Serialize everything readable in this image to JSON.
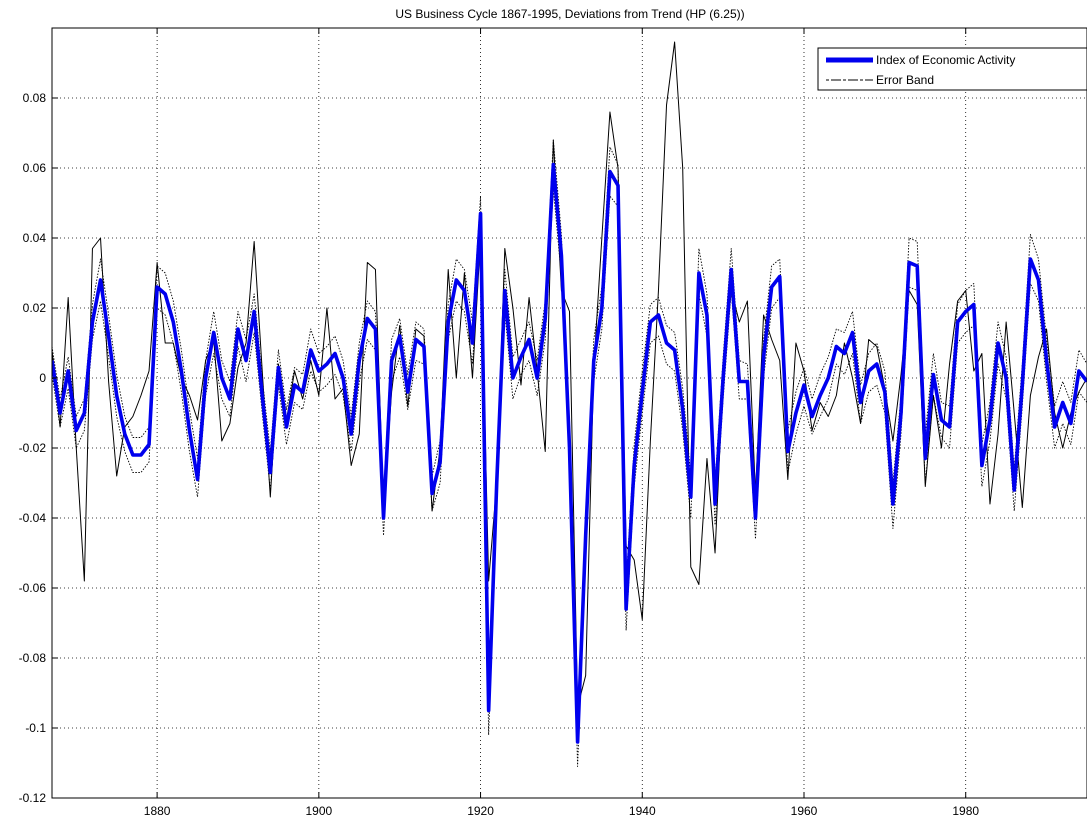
{
  "chart_data": {
    "type": "line",
    "title": "US Business Cycle 1867-1995, Deviations from Trend (HP (6.25))",
    "xlabel": "",
    "ylabel": "",
    "xlim": [
      1867,
      1995
    ],
    "ylim": [
      -0.12,
      0.1
    ],
    "x_ticks": [
      1880,
      1900,
      1920,
      1940,
      1960,
      1980
    ],
    "x_tick_labels": [
      "1880",
      "1900",
      "1920",
      "1940",
      "1960",
      "1980"
    ],
    "y_ticks": [
      -0.12,
      -0.1,
      -0.08,
      -0.06,
      -0.04,
      -0.02,
      0,
      0.02,
      0.04,
      0.06,
      0.08
    ],
    "y_tick_labels": [
      "-0.12",
      "-0.1",
      "-0.08",
      "-0.06",
      "-0.04",
      "-0.02",
      "0",
      "0.02",
      "0.04",
      "0.06",
      "0.08"
    ],
    "grid": true,
    "legend_position": "top-right",
    "series": [
      {
        "name": "Index of Economic Activity",
        "color": "#0000ee",
        "style": "thick-solid",
        "x": [
          1867,
          1868,
          1869,
          1870,
          1871,
          1872,
          1873,
          1874,
          1875,
          1876,
          1877,
          1878,
          1879,
          1880,
          1881,
          1882,
          1883,
          1884,
          1885,
          1886,
          1887,
          1888,
          1889,
          1890,
          1891,
          1892,
          1893,
          1894,
          1895,
          1896,
          1897,
          1898,
          1899,
          1900,
          1901,
          1902,
          1903,
          1904,
          1905,
          1906,
          1907,
          1908,
          1909,
          1910,
          1911,
          1912,
          1913,
          1914,
          1915,
          1916,
          1917,
          1918,
          1919,
          1920,
          1921,
          1922,
          1923,
          1924,
          1925,
          1926,
          1927,
          1928,
          1929,
          1930,
          1931,
          1932,
          1933,
          1934,
          1935,
          1936,
          1937,
          1938,
          1939,
          1940,
          1941,
          1942,
          1943,
          1944,
          1945,
          1946,
          1947,
          1948,
          1949,
          1950,
          1951,
          1952,
          1953,
          1954,
          1955,
          1956,
          1957,
          1958,
          1959,
          1960,
          1961,
          1962,
          1963,
          1964,
          1965,
          1966,
          1967,
          1968,
          1969,
          1970,
          1971,
          1972,
          1973,
          1974,
          1975,
          1976,
          1977,
          1978,
          1979,
          1980,
          1981,
          1982,
          1983,
          1984,
          1985,
          1986,
          1987,
          1988,
          1989,
          1990,
          1991,
          1992,
          1993,
          1994,
          1995
        ],
        "values": [
          0.005,
          -0.01,
          0.002,
          -0.015,
          -0.01,
          0.016,
          0.028,
          0.012,
          -0.005,
          -0.016,
          -0.022,
          -0.022,
          -0.019,
          0.026,
          0.024,
          0.016,
          0.002,
          -0.015,
          -0.029,
          0.0,
          0.013,
          0.0,
          -0.006,
          0.014,
          0.005,
          0.019,
          -0.005,
          -0.027,
          0.003,
          -0.014,
          -0.002,
          -0.004,
          0.008,
          0.002,
          0.004,
          0.007,
          0.0,
          -0.016,
          0.005,
          0.017,
          0.014,
          -0.04,
          0.005,
          0.012,
          -0.004,
          0.011,
          0.009,
          -0.033,
          -0.024,
          0.016,
          0.028,
          0.025,
          0.01,
          0.047,
          -0.095,
          -0.03,
          0.025,
          0.0,
          0.006,
          0.011,
          0.0,
          0.017,
          0.061,
          0.035,
          -0.02,
          -0.104,
          -0.045,
          0.005,
          0.02,
          0.059,
          0.055,
          -0.066,
          -0.025,
          -0.004,
          0.016,
          0.018,
          0.01,
          0.008,
          -0.009,
          -0.034,
          0.03,
          0.018,
          -0.036,
          0.0,
          0.031,
          -0.001,
          -0.001,
          -0.04,
          0.006,
          0.026,
          0.029,
          -0.021,
          -0.01,
          -0.002,
          -0.011,
          -0.005,
          0.0,
          0.009,
          0.007,
          0.013,
          -0.007,
          0.002,
          0.004,
          -0.004,
          -0.036,
          -0.01,
          0.033,
          0.032,
          -0.023,
          0.001,
          -0.012,
          -0.014,
          0.016,
          0.019,
          0.021,
          -0.025,
          -0.012,
          0.01,
          0.0,
          -0.032,
          -0.002,
          0.034,
          0.028,
          0.005,
          -0.014,
          -0.007,
          -0.013,
          0.002,
          -0.001
        ]
      },
      {
        "name": "Error Band",
        "color": "#000000",
        "style": "thin-solid",
        "x": [
          1867,
          1868,
          1869,
          1870,
          1871,
          1872,
          1873,
          1874,
          1875,
          1876,
          1877,
          1878,
          1879,
          1880,
          1881,
          1882,
          1883,
          1884,
          1885,
          1886,
          1887,
          1888,
          1889,
          1890,
          1891,
          1892,
          1893,
          1894,
          1895,
          1896,
          1897,
          1898,
          1899,
          1900,
          1901,
          1902,
          1903,
          1904,
          1905,
          1906,
          1907,
          1908,
          1909,
          1910,
          1911,
          1912,
          1913,
          1914,
          1915,
          1916,
          1917,
          1918,
          1919,
          1920,
          1921,
          1922,
          1923,
          1924,
          1925,
          1926,
          1927,
          1928,
          1929,
          1930,
          1931,
          1932,
          1933,
          1934,
          1935,
          1936,
          1937,
          1938,
          1939,
          1940,
          1941,
          1942,
          1943,
          1944,
          1945,
          1946,
          1947,
          1948,
          1949,
          1950,
          1951,
          1952,
          1953,
          1954,
          1955,
          1956,
          1957,
          1958,
          1959,
          1960,
          1961,
          1962,
          1963,
          1964,
          1965,
          1966,
          1967,
          1968,
          1969,
          1970,
          1971,
          1972,
          1973,
          1974,
          1975,
          1976,
          1977,
          1978,
          1979,
          1980,
          1981,
          1982,
          1983,
          1984,
          1985,
          1986,
          1987,
          1988,
          1989,
          1990,
          1991,
          1992,
          1993,
          1994,
          1995
        ],
        "values": [
          0.008,
          -0.014,
          0.023,
          -0.02,
          -0.058,
          0.037,
          0.04,
          -0.001,
          -0.028,
          -0.014,
          -0.011,
          -0.005,
          0.002,
          0.033,
          0.01,
          0.01,
          0.0,
          -0.005,
          -0.012,
          0.005,
          0.011,
          -0.018,
          -0.013,
          0.003,
          0.01,
          0.039,
          0.002,
          -0.034,
          0.004,
          -0.012,
          0.002,
          -0.006,
          0.005,
          -0.005,
          0.02,
          -0.006,
          -0.003,
          -0.025,
          -0.016,
          0.033,
          0.031,
          -0.037,
          -0.004,
          0.015,
          -0.008,
          0.014,
          0.012,
          -0.038,
          -0.02,
          0.031,
          0.0,
          0.03,
          0.0,
          0.04,
          -0.058,
          -0.03,
          0.037,
          0.02,
          -0.002,
          0.023,
          0.002,
          -0.021,
          0.068,
          0.025,
          0.019,
          -0.094,
          -0.085,
          0.003,
          0.04,
          0.076,
          0.06,
          -0.048,
          -0.052,
          -0.069,
          -0.018,
          0.025,
          0.078,
          0.096,
          0.06,
          -0.054,
          -0.059,
          -0.023,
          -0.05,
          0.0,
          0.025,
          0.016,
          0.022,
          -0.033,
          0.018,
          0.011,
          0.005,
          -0.029,
          0.01,
          0.002,
          -0.015,
          -0.007,
          -0.011,
          -0.005,
          0.01,
          0.0,
          -0.013,
          0.011,
          0.009,
          -0.003,
          -0.018,
          0.001,
          0.025,
          0.021,
          -0.031,
          -0.005,
          -0.02,
          0.004,
          0.022,
          0.025,
          0.002,
          0.007,
          -0.036,
          -0.016,
          0.016,
          -0.01,
          -0.037,
          -0.005,
          0.006,
          0.014,
          -0.01,
          -0.02,
          -0.01,
          -0.004,
          0.0
        ]
      },
      {
        "name": "",
        "color": "#000000",
        "style": "thin-dotted",
        "x": [
          1867,
          1868,
          1869,
          1870,
          1871,
          1872,
          1873,
          1874,
          1875,
          1876,
          1877,
          1878,
          1879,
          1880,
          1881,
          1882,
          1883,
          1884,
          1885,
          1886,
          1887,
          1888,
          1889,
          1890,
          1891,
          1892,
          1893,
          1894,
          1895,
          1896,
          1897,
          1898,
          1899,
          1900,
          1901,
          1902,
          1903,
          1904,
          1905,
          1906,
          1907,
          1908,
          1909,
          1910,
          1911,
          1912,
          1913,
          1914,
          1915,
          1916,
          1917,
          1918,
          1919,
          1920,
          1921,
          1922,
          1923,
          1924,
          1925,
          1926,
          1927,
          1928,
          1929,
          1930,
          1931,
          1932,
          1933,
          1934,
          1935,
          1936,
          1937,
          1938,
          1939,
          1940,
          1941,
          1942,
          1943,
          1944,
          1945,
          1946,
          1947,
          1948,
          1949,
          1950,
          1951,
          1952,
          1953,
          1954,
          1955,
          1956,
          1957,
          1958,
          1959,
          1960,
          1961,
          1962,
          1963,
          1964,
          1965,
          1966,
          1967,
          1968,
          1969,
          1970,
          1971,
          1972,
          1973,
          1974,
          1975,
          1976,
          1977,
          1978,
          1979,
          1980,
          1981,
          1982,
          1983,
          1984,
          1985,
          1986,
          1987,
          1988,
          1989,
          1990,
          1991,
          1992,
          1993,
          1994,
          1995
        ],
        "values": [
          0.009,
          -0.006,
          0.006,
          -0.011,
          -0.006,
          0.021,
          0.034,
          0.018,
          0.001,
          -0.011,
          -0.017,
          -0.017,
          -0.014,
          0.032,
          0.03,
          0.022,
          0.008,
          -0.009,
          -0.023,
          0.005,
          0.019,
          0.005,
          -0.001,
          0.019,
          0.011,
          0.024,
          0.0,
          -0.021,
          0.008,
          -0.009,
          0.003,
          0.001,
          0.014,
          0.007,
          0.009,
          0.012,
          0.005,
          -0.011,
          0.01,
          0.022,
          0.019,
          -0.034,
          0.011,
          0.017,
          0.001,
          0.016,
          0.014,
          -0.028,
          -0.018,
          0.021,
          0.034,
          0.031,
          0.016,
          0.052,
          -0.088,
          -0.024,
          0.031,
          0.006,
          0.011,
          0.016,
          0.005,
          0.022,
          0.068,
          0.041,
          -0.014,
          -0.097,
          -0.04,
          0.011,
          0.026,
          0.066,
          0.061,
          -0.059,
          -0.019,
          0.002,
          0.021,
          0.023,
          0.015,
          0.013,
          -0.003,
          -0.028,
          0.037,
          0.024,
          -0.03,
          0.006,
          0.037,
          0.005,
          0.004,
          -0.034,
          0.011,
          0.032,
          0.034,
          -0.015,
          -0.004,
          0.003,
          -0.006,
          0.001,
          0.006,
          0.014,
          0.013,
          0.019,
          -0.002,
          0.007,
          0.01,
          0.002,
          -0.03,
          -0.005,
          0.04,
          0.039,
          -0.016,
          0.007,
          -0.007,
          -0.008,
          0.021,
          0.025,
          0.027,
          -0.019,
          -0.007,
          0.016,
          0.006,
          -0.026,
          0.004,
          0.041,
          0.034,
          0.011,
          -0.008,
          -0.001,
          -0.007,
          0.008,
          0.004
        ]
      },
      {
        "name": "",
        "color": "#000000",
        "style": "thin-dotted",
        "x": [
          1867,
          1868,
          1869,
          1870,
          1871,
          1872,
          1873,
          1874,
          1875,
          1876,
          1877,
          1878,
          1879,
          1880,
          1881,
          1882,
          1883,
          1884,
          1885,
          1886,
          1887,
          1888,
          1889,
          1890,
          1891,
          1892,
          1893,
          1894,
          1895,
          1896,
          1897,
          1898,
          1899,
          1900,
          1901,
          1902,
          1903,
          1904,
          1905,
          1906,
          1907,
          1908,
          1909,
          1910,
          1911,
          1912,
          1913,
          1914,
          1915,
          1916,
          1917,
          1918,
          1919,
          1920,
          1921,
          1922,
          1923,
          1924,
          1925,
          1926,
          1927,
          1928,
          1929,
          1930,
          1931,
          1932,
          1933,
          1934,
          1935,
          1936,
          1937,
          1938,
          1939,
          1940,
          1941,
          1942,
          1943,
          1944,
          1945,
          1946,
          1947,
          1948,
          1949,
          1950,
          1951,
          1952,
          1953,
          1954,
          1955,
          1956,
          1957,
          1958,
          1959,
          1960,
          1961,
          1962,
          1963,
          1964,
          1965,
          1966,
          1967,
          1968,
          1969,
          1970,
          1971,
          1972,
          1973,
          1974,
          1975,
          1976,
          1977,
          1978,
          1979,
          1980,
          1981,
          1982,
          1983,
          1984,
          1985,
          1986,
          1987,
          1988,
          1989,
          1990,
          1991,
          1992,
          1993,
          1994,
          1995
        ],
        "values": [
          0.001,
          -0.014,
          -0.003,
          -0.02,
          -0.015,
          0.011,
          0.022,
          0.006,
          -0.011,
          -0.021,
          -0.027,
          -0.027,
          -0.024,
          0.02,
          0.018,
          0.01,
          -0.004,
          -0.021,
          -0.034,
          -0.005,
          0.007,
          -0.006,
          -0.011,
          0.009,
          -0.001,
          0.013,
          -0.01,
          -0.032,
          -0.002,
          -0.019,
          -0.007,
          -0.009,
          0.002,
          -0.004,
          -0.002,
          0.001,
          -0.005,
          -0.021,
          -0.001,
          0.011,
          0.008,
          -0.045,
          -0.001,
          0.006,
          -0.009,
          0.005,
          0.004,
          -0.038,
          -0.03,
          0.011,
          0.022,
          0.019,
          0.004,
          0.041,
          -0.102,
          -0.036,
          0.019,
          -0.006,
          0.001,
          0.005,
          -0.005,
          0.011,
          0.054,
          0.029,
          -0.026,
          -0.111,
          -0.05,
          -0.001,
          0.014,
          0.052,
          0.049,
          -0.072,
          -0.031,
          -0.01,
          0.01,
          0.012,
          0.004,
          0.002,
          -0.015,
          -0.04,
          0.024,
          0.012,
          -0.042,
          -0.006,
          0.025,
          -0.006,
          -0.006,
          -0.046,
          0.0,
          0.02,
          0.023,
          -0.027,
          -0.016,
          -0.008,
          -0.016,
          -0.011,
          -0.006,
          0.004,
          0.001,
          0.007,
          -0.013,
          -0.004,
          -0.002,
          -0.01,
          -0.043,
          -0.016,
          0.026,
          0.025,
          -0.03,
          -0.005,
          -0.017,
          -0.02,
          0.01,
          0.013,
          0.015,
          -0.031,
          -0.018,
          0.004,
          -0.006,
          -0.038,
          -0.008,
          0.027,
          0.022,
          -0.001,
          -0.02,
          -0.013,
          -0.019,
          -0.004,
          -0.007
        ]
      }
    ]
  }
}
